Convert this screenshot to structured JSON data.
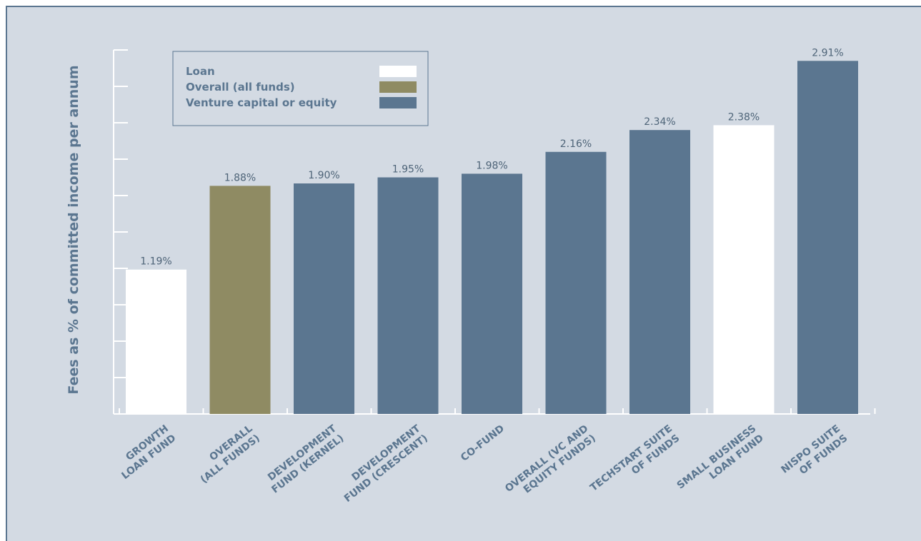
{
  "chart_data": {
    "type": "bar",
    "title": "",
    "ylabel": "Fees as % of committed income per annum",
    "xlabel": "",
    "ylim": [
      0,
      3.0
    ],
    "grid": false,
    "legend_position": "top-left",
    "categories": [
      [
        "GROWTH",
        "LOAN FUND"
      ],
      [
        "OVERALL",
        "(ALL FUNDS)"
      ],
      [
        "DEVELOPMENT",
        "FUND (KERNEL)"
      ],
      [
        "DEVELOPMENT",
        "FUND (CRESCENT)"
      ],
      [
        "CO-FUND"
      ],
      [
        "OVERALL (VC AND",
        "EQUITY FUNDS)"
      ],
      [
        "TECHSTART SUITE",
        "OF FUNDS"
      ],
      [
        "SMALL BUSINESS",
        "LOAN FUND"
      ],
      [
        "NISPO SUITE",
        "OF FUNDS"
      ]
    ],
    "values": [
      1.19,
      1.88,
      1.9,
      1.95,
      1.98,
      2.16,
      2.34,
      2.38,
      2.91
    ],
    "value_labels": [
      "1.19%",
      "1.88%",
      "1.90%",
      "1.95%",
      "1.98%",
      "2.16%",
      "2.34%",
      "2.38%",
      "2.91%"
    ],
    "bar_types": [
      "loan",
      "overall",
      "vc",
      "vc",
      "vc",
      "vc",
      "vc",
      "loan",
      "vc"
    ],
    "legend": [
      {
        "key": "loan",
        "label": "Loan",
        "color": "#ffffff"
      },
      {
        "key": "overall",
        "label": "Overall (all funds)",
        "color": "#8f8b63"
      },
      {
        "key": "vc",
        "label": "Venture capital or equity",
        "color": "#5b7690"
      }
    ]
  }
}
